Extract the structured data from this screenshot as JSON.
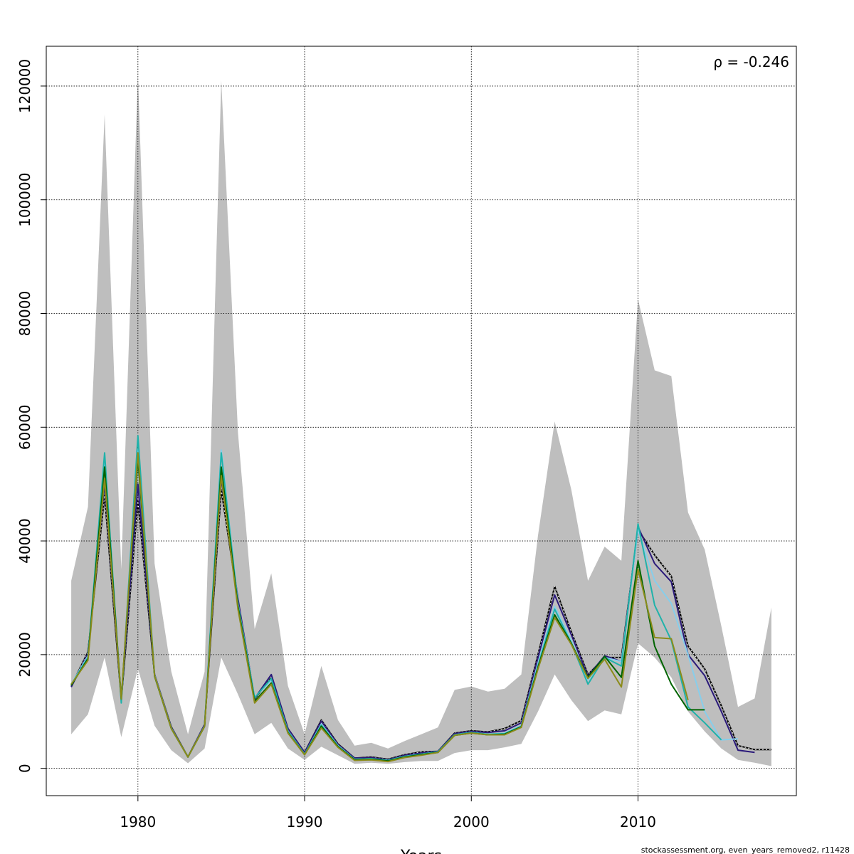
{
  "chart_data": {
    "type": "line",
    "title": "",
    "xlabel": "Years",
    "ylabel": "",
    "xlim": [
      1974.5,
      2019.5
    ],
    "ylim": [
      -4800,
      127000
    ],
    "grid": true,
    "annotation": "ρ = -0.246",
    "x_ticks": [
      1980,
      1990,
      2000,
      2010
    ],
    "y_ticks": [
      0,
      20000,
      40000,
      60000,
      80000,
      100000,
      120000
    ],
    "ci_band": {
      "years": [
        1976,
        1977,
        1978,
        1979,
        1980,
        1981,
        1982,
        1983,
        1984,
        1985,
        1986,
        1987,
        1988,
        1989,
        1990,
        1991,
        1992,
        1993,
        1994,
        1995,
        1996,
        1997,
        1998,
        1999,
        2000,
        2001,
        2002,
        2003,
        2004,
        2005,
        2006,
        2007,
        2008,
        2009,
        2010,
        2011,
        2012,
        2013,
        2014,
        2015,
        2016,
        2017,
        2018
      ],
      "upper": [
        33000,
        46000,
        115000,
        35000,
        122000,
        36000,
        17000,
        6000,
        17000,
        121000,
        59000,
        24500,
        34300,
        14500,
        6000,
        18000,
        8500,
        4000,
        4500,
        3500,
        4800,
        6000,
        7200,
        13800,
        14400,
        13500,
        14000,
        16500,
        41000,
        61000,
        49000,
        33000,
        39000,
        36500,
        82500,
        70000,
        69000,
        45000,
        38500,
        25000,
        10800,
        12300,
        28300
      ],
      "lower": [
        6000,
        9500,
        19500,
        5500,
        17500,
        7500,
        3200,
        900,
        3500,
        19500,
        13000,
        6000,
        8000,
        3500,
        1500,
        3800,
        2300,
        800,
        1000,
        800,
        1100,
        1300,
        1300,
        2700,
        3200,
        3200,
        3700,
        4300,
        10000,
        16500,
        12000,
        8300,
        10200,
        9500,
        22000,
        19500,
        16000,
        10000,
        6500,
        3500,
        1500,
        1000,
        400
      ]
    },
    "series": [
      {
        "color": "#000000",
        "years": [
          1976,
          1977,
          1978,
          1979,
          1980,
          1981,
          1982,
          1983,
          1984,
          1985,
          1986,
          1987,
          1988,
          1989,
          1990,
          1991,
          1992,
          1993,
          1994,
          1995,
          1996,
          1997,
          1998,
          1999,
          2000,
          2001,
          2002,
          2003,
          2004,
          2005,
          2006,
          2007,
          2008,
          2009,
          2010,
          2011,
          2012,
          2013,
          2014,
          2015,
          2016,
          2017,
          2018
        ],
        "values": [
          14500,
          20500,
          48000,
          12000,
          47000,
          16500,
          7300,
          2000,
          7700,
          49000,
          29500,
          12200,
          16000,
          7000,
          2800,
          8500,
          4300,
          1800,
          2000,
          1600,
          2400,
          2900,
          3000,
          6200,
          6600,
          6400,
          7000,
          8400,
          20000,
          32000,
          24000,
          16500,
          19500,
          19500,
          42000,
          37500,
          33800,
          21500,
          17500,
          11000,
          4000,
          3300,
          3300
        ]
      },
      {
        "color": "#2b1a7a",
        "years": [
          1976,
          1977,
          1978,
          1979,
          1980,
          1981,
          1982,
          1983,
          1984,
          1985,
          1986,
          1987,
          1988,
          1989,
          1990,
          1991,
          1992,
          1993,
          1994,
          1995,
          1996,
          1997,
          1998,
          1999,
          2000,
          2001,
          2002,
          2003,
          2004,
          2005,
          2006,
          2007,
          2008,
          2009,
          2010,
          2011,
          2012,
          2013,
          2014,
          2015,
          2016,
          2017
        ],
        "values": [
          14300,
          20200,
          50000,
          12300,
          50000,
          16500,
          7200,
          2000,
          7700,
          51000,
          29800,
          12300,
          16500,
          7000,
          2800,
          8300,
          4200,
          1800,
          1900,
          1500,
          2300,
          2700,
          3000,
          6100,
          6500,
          6300,
          6600,
          8000,
          19500,
          30500,
          23500,
          16200,
          19800,
          18800,
          42500,
          36000,
          32800,
          20000,
          16300,
          10000,
          3200,
          2800
        ]
      },
      {
        "color": "#87ceeb",
        "years": [
          1976,
          1977,
          1978,
          1979,
          1980,
          1981,
          1982,
          1983,
          1984,
          1985,
          1986,
          1987,
          1988,
          1989,
          1990,
          1991,
          1992,
          1993,
          1994,
          1995,
          1996,
          1997,
          1998,
          1999,
          2000,
          2001,
          2002,
          2003,
          2004,
          2005,
          2006,
          2007,
          2008,
          2009,
          2010,
          2011,
          2012,
          2013,
          2014,
          2015,
          2016
        ],
        "values": [
          14800,
          19800,
          54000,
          11800,
          56000,
          16400,
          7100,
          2000,
          7500,
          56000,
          29000,
          12500,
          15500,
          6600,
          2500,
          7800,
          4000,
          1600,
          1700,
          1400,
          2100,
          2500,
          2900,
          5900,
          6300,
          6000,
          6200,
          7500,
          18500,
          28500,
          22500,
          15500,
          19500,
          18800,
          42000,
          33000,
          29000,
          20000,
          10000,
          5000,
          5200
        ]
      },
      {
        "color": "#20b2aa",
        "years": [
          1976,
          1977,
          1978,
          1979,
          1980,
          1981,
          1982,
          1983,
          1984,
          1985,
          1986,
          1987,
          1988,
          1989,
          1990,
          1991,
          1992,
          1993,
          1994,
          1995,
          1996,
          1997,
          1998,
          1999,
          2000,
          2001,
          2002,
          2003,
          2004,
          2005,
          2006,
          2007,
          2008,
          2009,
          2010,
          2011,
          2012,
          2013,
          2014,
          2015
        ],
        "values": [
          14700,
          19500,
          55500,
          11500,
          58500,
          16300,
          7000,
          2000,
          7400,
          55500,
          28800,
          12400,
          15800,
          6500,
          2500,
          7600,
          3900,
          1600,
          1700,
          1400,
          2100,
          2500,
          2900,
          5900,
          6300,
          6000,
          6100,
          7400,
          18000,
          28000,
          22000,
          14800,
          19500,
          18000,
          43000,
          28700,
          22500,
          10800,
          8000,
          5000
        ]
      },
      {
        "color": "#006400",
        "years": [
          1976,
          1977,
          1978,
          1979,
          1980,
          1981,
          1982,
          1983,
          1984,
          1985,
          1986,
          1987,
          1988,
          1989,
          1990,
          1991,
          1992,
          1993,
          1994,
          1995,
          1996,
          1997,
          1998,
          1999,
          2000,
          2001,
          2002,
          2003,
          2004,
          2005,
          2006,
          2007,
          2008,
          2009,
          2010,
          2011,
          2012,
          2013,
          2014
        ],
        "values": [
          14600,
          19300,
          53000,
          12200,
          54500,
          16200,
          7000,
          2000,
          7400,
          53000,
          28500,
          11800,
          15000,
          6300,
          2400,
          7400,
          3800,
          1500,
          1600,
          1300,
          2000,
          2400,
          2800,
          5800,
          6200,
          5900,
          6000,
          7300,
          17800,
          27000,
          22000,
          16000,
          19700,
          16000,
          36500,
          21500,
          14800,
          10300,
          10300
        ]
      },
      {
        "color": "#8b8b1a",
        "years": [
          1976,
          1977,
          1978,
          1979,
          1980,
          1981,
          1982,
          1983,
          1984,
          1985,
          1986,
          1987,
          1988,
          1989,
          1990,
          1991,
          1992,
          1993,
          1994,
          1995,
          1996,
          1997,
          1998,
          1999,
          2000,
          2001,
          2002,
          2003,
          2004,
          2005,
          2006,
          2007,
          2008,
          2009,
          2010,
          2011,
          2012,
          2013
        ],
        "values": [
          14800,
          19000,
          51000,
          12200,
          55500,
          16300,
          7000,
          2000,
          7400,
          51500,
          28000,
          11500,
          14800,
          6200,
          2400,
          7100,
          3700,
          1400,
          1500,
          1200,
          1900,
          2300,
          2800,
          5800,
          6200,
          5900,
          5900,
          7200,
          17500,
          26500,
          21800,
          15800,
          19200,
          14300,
          35000,
          23000,
          22800,
          12000
        ]
      }
    ]
  },
  "footer": "stockassessment.org, even_years_removed2, r11428"
}
